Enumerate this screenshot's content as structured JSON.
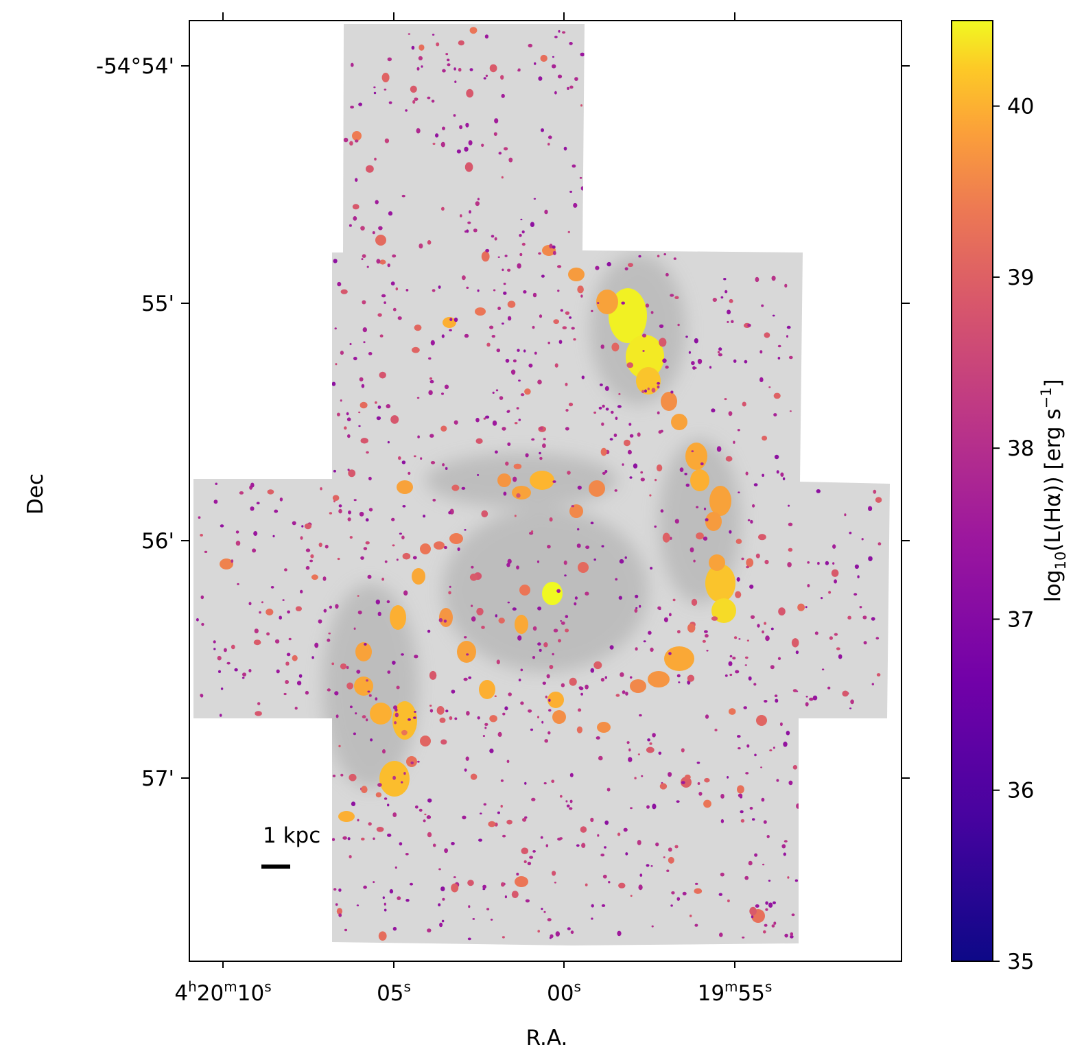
{
  "chart_data": {
    "type": "heatmap",
    "xlabel": "R.A.",
    "ylabel": "Dec",
    "x_ticks": [
      {
        "value": "4h20m10s",
        "parts": [
          [
            "4",
            "h"
          ],
          [
            "20",
            "m"
          ],
          [
            "10",
            "s"
          ]
        ]
      },
      {
        "value": "05s",
        "parts": [
          [
            "05",
            "s"
          ]
        ]
      },
      {
        "value": "00s",
        "parts": [
          [
            "00",
            "s"
          ]
        ]
      },
      {
        "value": "19m55s",
        "parts": [
          [
            "19",
            "m"
          ],
          [
            "55",
            "s"
          ]
        ]
      }
    ],
    "y_ticks": [
      "-54°54'",
      "55'",
      "56'",
      "57'"
    ],
    "colorbar": {
      "label": "log10(L(Hα)) [erg s−1]",
      "label_parts": [
        "log",
        "10",
        "(L(Hα)) [erg s",
        "−1",
        "]"
      ],
      "range": [
        35,
        40.5
      ],
      "ticks": [
        35,
        36,
        37,
        38,
        39,
        40
      ],
      "colormap": "plasma"
    },
    "scalebar": {
      "label": "1 kpc"
    },
    "background": "greyscale galaxy image (mosaic footprint)",
    "hii_regions_logL": [
      40.4,
      40.3,
      40.2,
      39.9,
      39.8,
      39.7,
      39.6,
      39.5,
      39.4,
      39.3,
      39.1,
      38.9,
      38.7,
      38.5,
      38.3,
      38.0,
      37.5,
      37.0,
      36.8
    ]
  },
  "colors": {
    "plasma_stops": [
      "#0d0887",
      "#5c01a6",
      "#9c179e",
      "#cc4778",
      "#ed7953",
      "#fdb42f",
      "#f0f921"
    ],
    "background_gray": "#d3d3d3"
  }
}
